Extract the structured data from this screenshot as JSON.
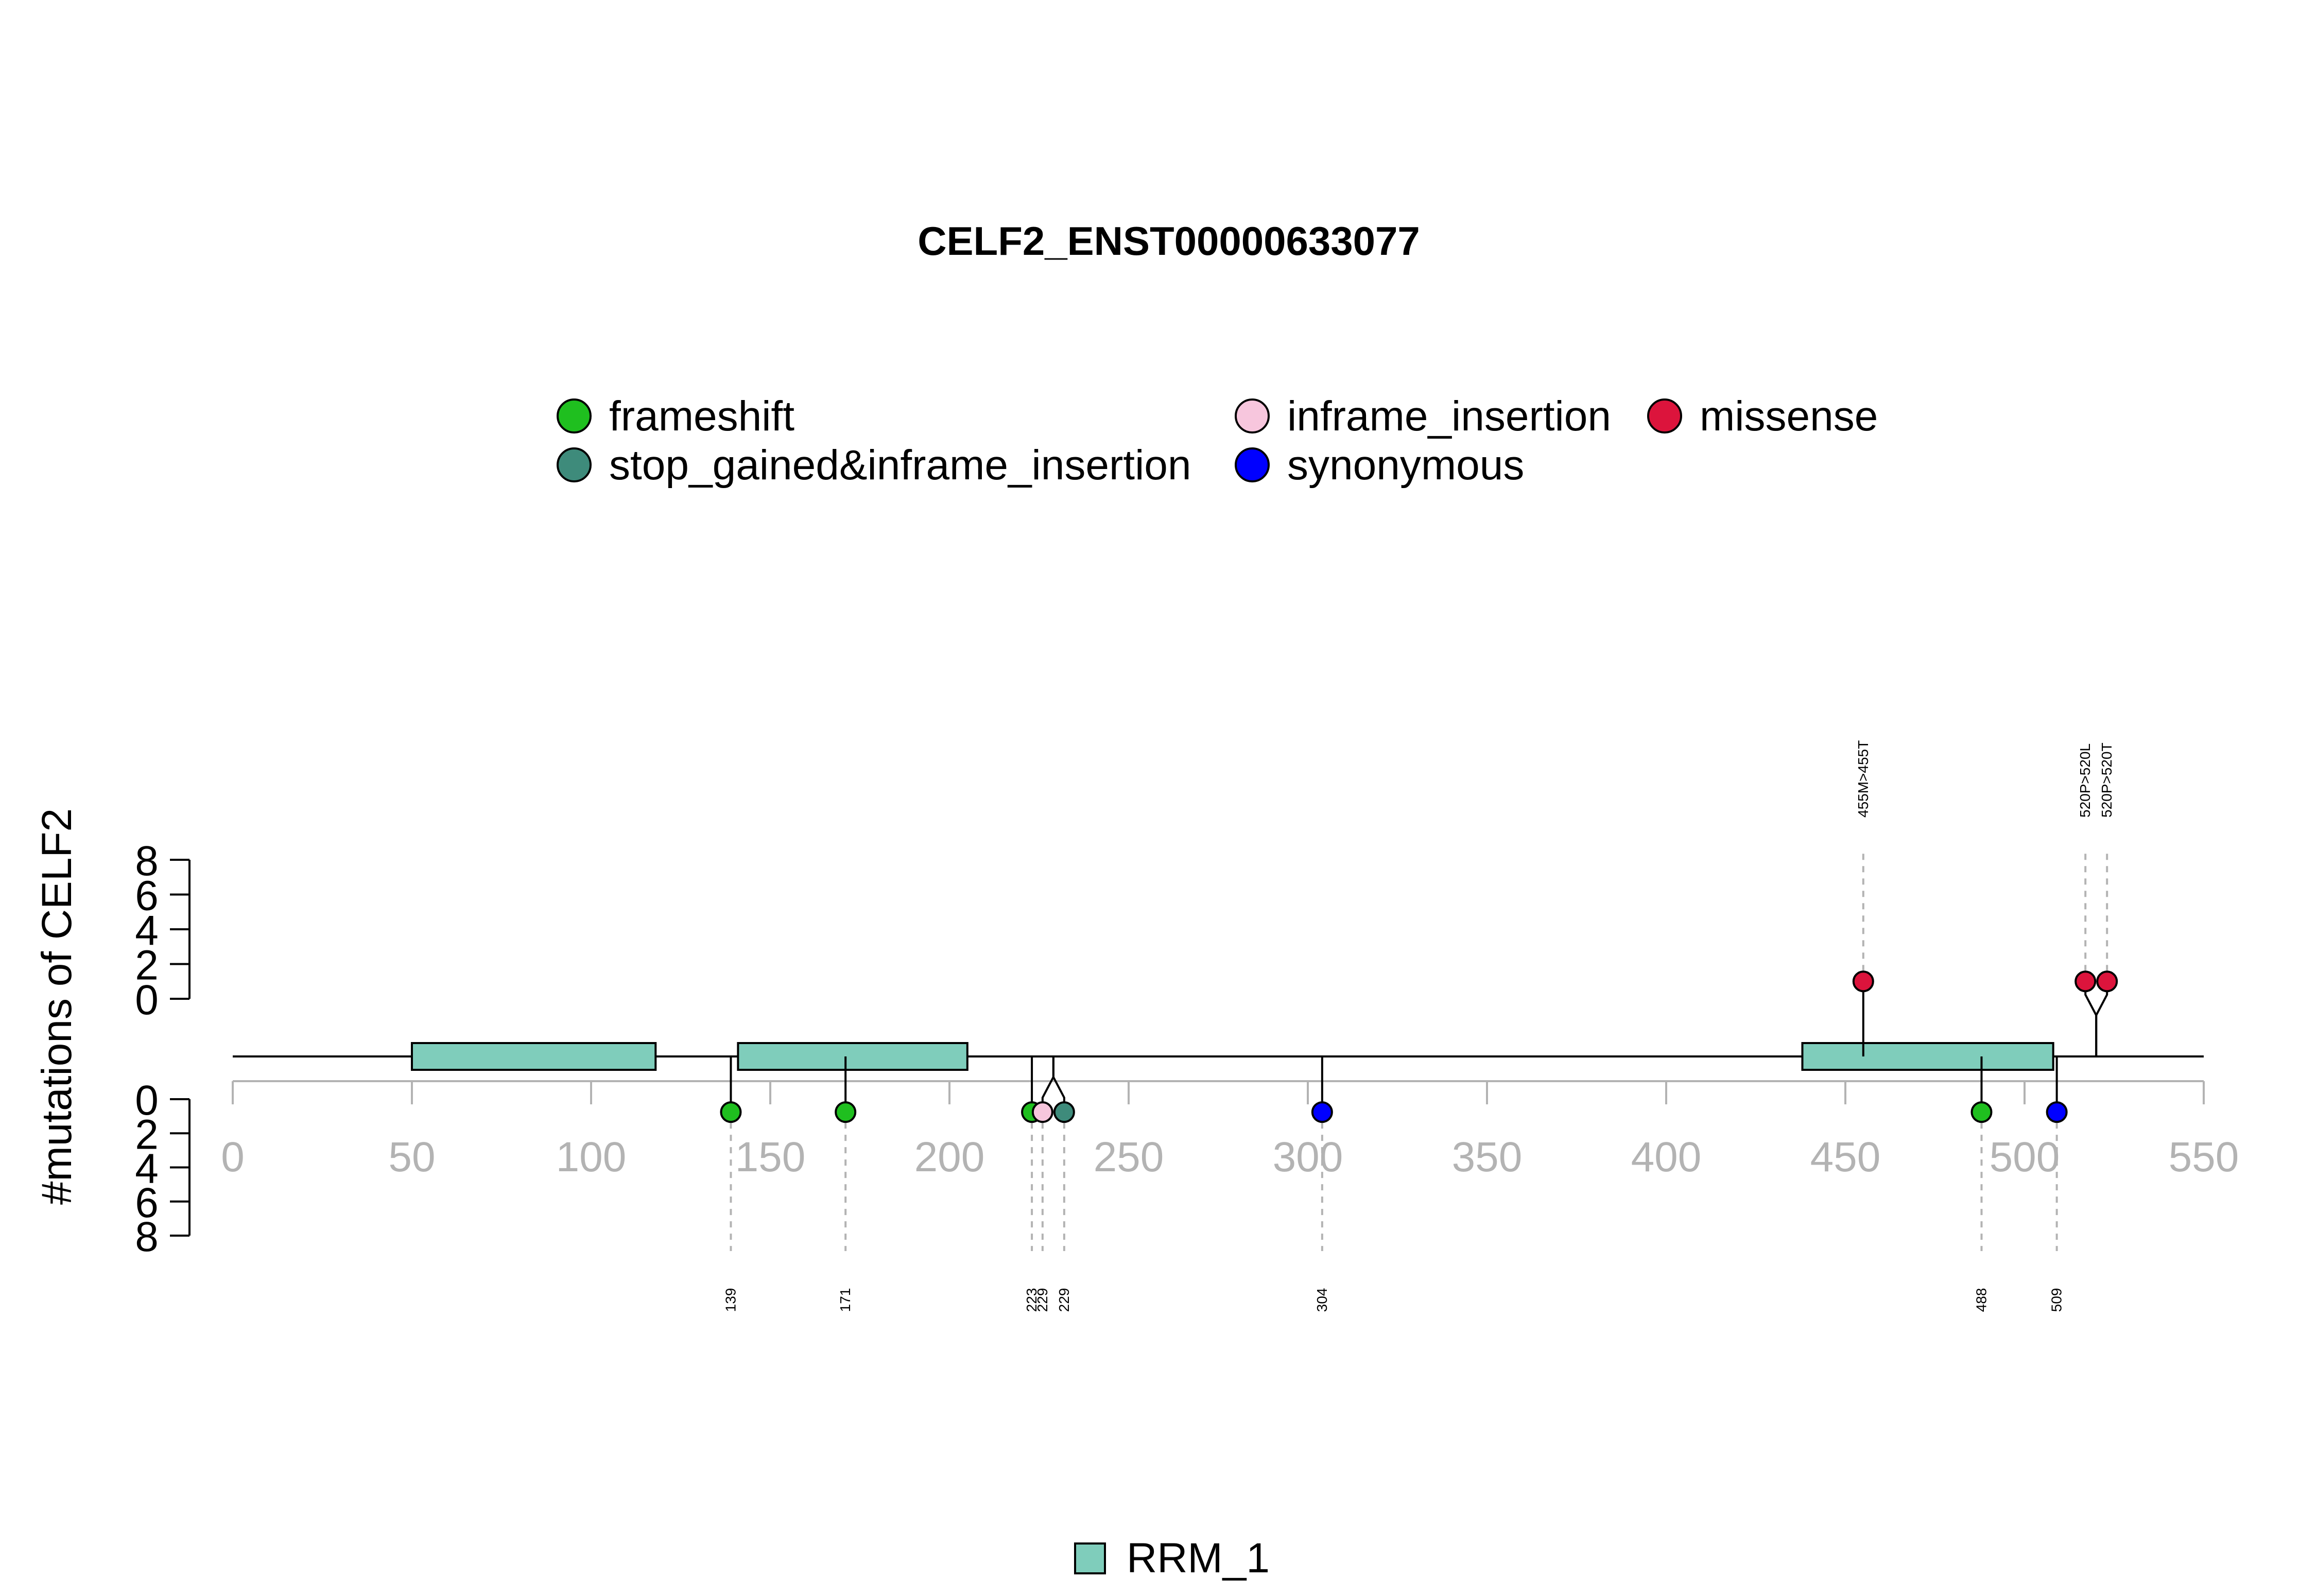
{
  "chart_data": {
    "type": "lollipop",
    "title": "CELF2_ENST00000633077",
    "ylabel": "#mutations of CELF2",
    "xlim": [
      0,
      550
    ],
    "x_ticks": [
      0,
      50,
      100,
      150,
      200,
      250,
      300,
      350,
      400,
      450,
      500,
      550
    ],
    "ylim_top": [
      0,
      8
    ],
    "ylim_bottom": [
      0,
      8
    ],
    "y_ticks": [
      0,
      2,
      4,
      6,
      8
    ],
    "legend": [
      {
        "name": "frameshift",
        "color": "#1fbf1f"
      },
      {
        "name": "inframe_insertion",
        "color": "#f7c6dd"
      },
      {
        "name": "missense",
        "color": "#dc143c"
      },
      {
        "name": "stop_gained&inframe_insertion",
        "color": "#3e8b7b"
      },
      {
        "name": "synonymous",
        "color": "#0000ff"
      }
    ],
    "domains": [
      {
        "name": "RRM_1",
        "start": 50,
        "end": 118,
        "color": "#7fcdbb"
      },
      {
        "name": "RRM_1",
        "start": 141,
        "end": 205,
        "color": "#7fcdbb"
      },
      {
        "name": "RRM_1",
        "start": 438,
        "end": 508,
        "color": "#7fcdbb"
      }
    ],
    "domain_legend": [
      {
        "name": "RRM_1",
        "color": "#7fcdbb"
      }
    ],
    "mutations_top": [
      {
        "position": 455,
        "count": 1,
        "type": "missense",
        "label": "455M>455T"
      },
      {
        "position": 520,
        "count": 1,
        "type": "missense",
        "label": "520P>520L"
      },
      {
        "position": 520,
        "count": 1,
        "type": "missense",
        "label": "520P>520T"
      }
    ],
    "mutations_bottom": [
      {
        "position": 139,
        "count": 1,
        "type": "frameshift",
        "label": "139"
      },
      {
        "position": 171,
        "count": 1,
        "type": "frameshift",
        "label": "171"
      },
      {
        "position": 223,
        "count": 1,
        "type": "frameshift",
        "label": "223"
      },
      {
        "position": 229,
        "count": 1,
        "type": "inframe_insertion",
        "label": "229"
      },
      {
        "position": 229,
        "count": 1,
        "type": "stop_gained&inframe_insertion",
        "label": "229"
      },
      {
        "position": 304,
        "count": 1,
        "type": "synonymous",
        "label": "304"
      },
      {
        "position": 488,
        "count": 1,
        "type": "frameshift",
        "label": "488"
      },
      {
        "position": 509,
        "count": 1,
        "type": "synonymous",
        "label": "509"
      }
    ]
  }
}
